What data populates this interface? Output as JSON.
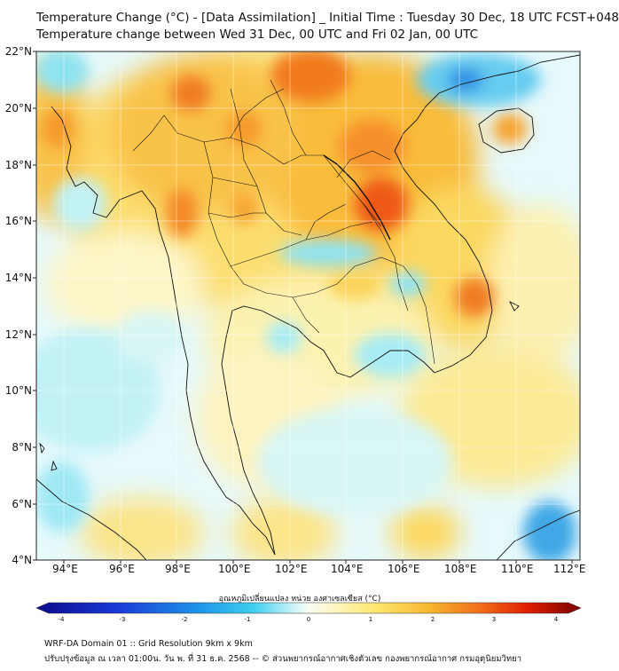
{
  "title_line1": "Temperature Change (°C) - [Data Assimilation] _ Initial Time : Tuesday 30 Dec, 18 UTC FCST+048",
  "title_line2": "Temperature change between Wed 31 Dec, 00 UTC and Fri 02 Jan, 00 UTC",
  "lat_labels": [
    "22°N",
    "20°N",
    "18°N",
    "16°N",
    "14°N",
    "12°N",
    "10°N",
    "8°N",
    "6°N",
    "4°N"
  ],
  "lon_labels": [
    "94°E",
    "96°E",
    "98°E",
    "100°E",
    "102°E",
    "104°E",
    "106°E",
    "108°E",
    "110°E",
    "112°E"
  ],
  "colorbar": {
    "label": "อุณหภูมิเปลี่ยนแปลง หน่วย องศาเซลเซียส (°C)",
    "ticks": [
      "-4",
      "-3",
      "-2",
      "-1",
      "0",
      "1",
      "2",
      "3",
      "4"
    ],
    "min": -4,
    "max": 4
  },
  "footer_line1": "WRF-DA Domain 01 :: Grid Resolution 9km x 9km",
  "footer_line2": "ปรับปรุงข้อมูล ณ เวลา 01:00น. วัน พ. ที่ 31 ธ.ค. 2568 -- © ส่วนพยากรณ์อากาศเชิงตัวเลข กองพยากรณ์อากาศ กรมอุตุนิยมวิทยา",
  "colors": {
    "warm_max": "#e02000",
    "warm": "#f7a21e",
    "mild_warm": "#fbe36a",
    "neutral": "#fdfbe0",
    "cool": "#8fe3f2",
    "cold": "#2c8fe0"
  }
}
